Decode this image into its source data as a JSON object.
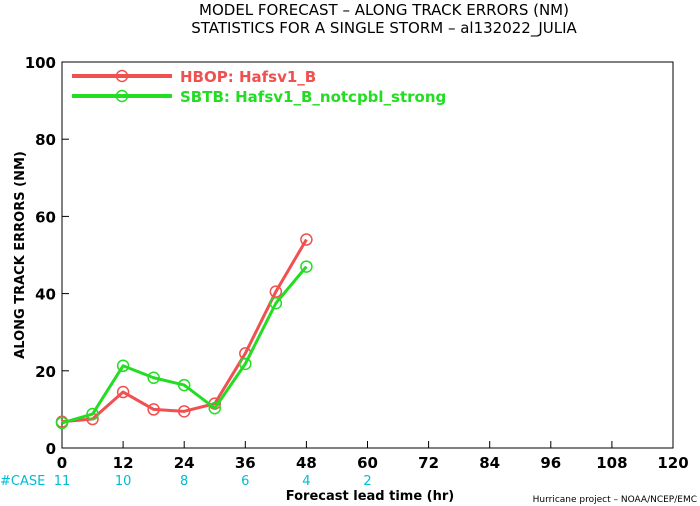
{
  "title_line1": "MODEL FORECAST – ALONG TRACK ERRORS (NM)",
  "title_line2": "STATISTICS FOR A SINGLE STORM – al132022_JULIA",
  "case_label": "#CASE",
  "credit": "Hurricane project – NOAA/NCEP/EMC",
  "colors": {
    "hbop": "#f05050",
    "sbtb": "#22dd22",
    "case": "#00bcd4"
  },
  "chart_data": {
    "type": "line",
    "title": "MODEL FORECAST – ALONG TRACK ERRORS (NM)",
    "subtitle": "STATISTICS FOR A SINGLE STORM – al132022_JULIA",
    "xlabel": "Forecast lead time (hr)",
    "ylabel": "ALONG TRACK ERRORS (NM)",
    "xlim": [
      0,
      120
    ],
    "ylim": [
      0,
      100
    ],
    "xticks": [
      0,
      12,
      24,
      36,
      48,
      60,
      72,
      84,
      96,
      108,
      120
    ],
    "yticks": [
      0,
      20,
      40,
      60,
      80,
      100
    ],
    "grid": false,
    "legend": "top-left",
    "cases": [
      {
        "x": 0,
        "n": "11"
      },
      {
        "x": 12,
        "n": "10"
      },
      {
        "x": 24,
        "n": "8"
      },
      {
        "x": 36,
        "n": "6"
      },
      {
        "x": 48,
        "n": "4"
      },
      {
        "x": 60,
        "n": "2"
      }
    ],
    "series": [
      {
        "name": "HBOP: Hafsv1_B",
        "color": "#f05050",
        "x": [
          0,
          6,
          12,
          18,
          24,
          30,
          36,
          42,
          48
        ],
        "y": [
          6.8,
          7.5,
          14.5,
          10.0,
          9.5,
          11.5,
          24.5,
          40.5,
          54.0
        ]
      },
      {
        "name": "SBTB: Hafsv1_B_notcpbl_strong",
        "color": "#22dd22",
        "x": [
          0,
          6,
          12,
          18,
          24,
          30,
          36,
          42,
          48
        ],
        "y": [
          6.5,
          8.8,
          21.3,
          18.2,
          16.3,
          10.3,
          21.8,
          37.5,
          47.0
        ]
      }
    ]
  }
}
